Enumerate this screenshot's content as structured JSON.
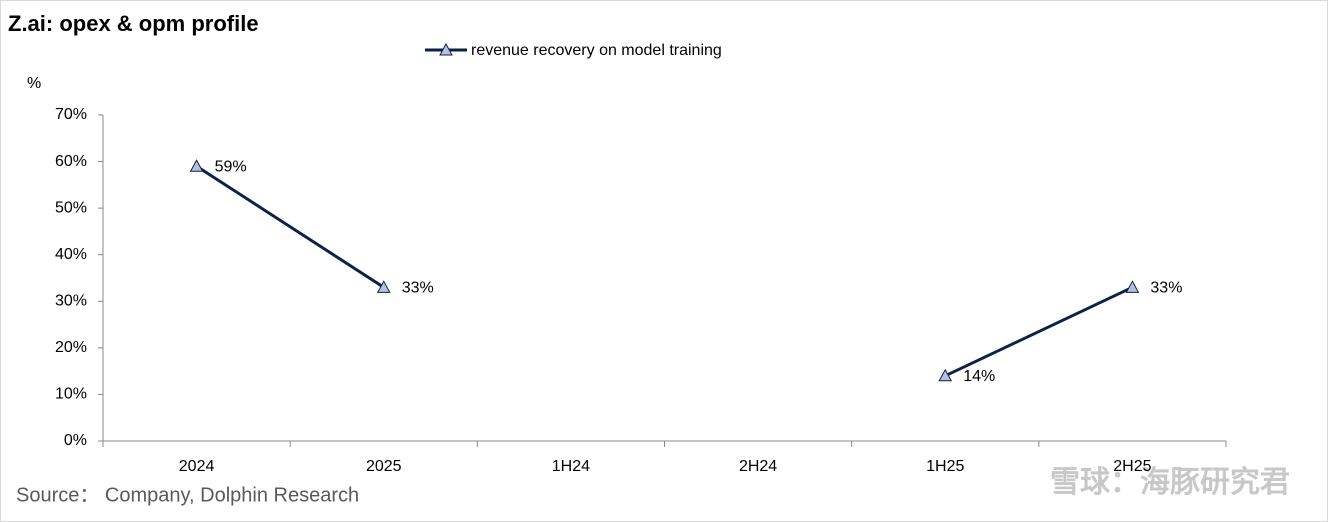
{
  "chart_data": {
    "type": "line",
    "title": "Z.ai: opex & opm profile",
    "y_label": "%",
    "categories": [
      "2024",
      "2025",
      "1H24",
      "2H24",
      "1H25",
      "2H25"
    ],
    "series": [
      {
        "name": "revenue recovery on model training",
        "color": "#0d2147",
        "values": [
          59,
          33,
          null,
          null,
          14,
          33
        ],
        "value_labels": [
          "59%",
          "33%",
          null,
          null,
          "14%",
          "33%"
        ]
      }
    ],
    "ylim": [
      0,
      70
    ],
    "yticks": [
      {
        "value": 0,
        "label": "0%"
      },
      {
        "value": 10,
        "label": "10%"
      },
      {
        "value": 20,
        "label": "20%"
      },
      {
        "value": 30,
        "label": "30%"
      },
      {
        "value": 40,
        "label": "40%"
      },
      {
        "value": 50,
        "label": "50%"
      },
      {
        "value": 60,
        "label": "60%"
      },
      {
        "value": 70,
        "label": "70%"
      }
    ],
    "grid": false,
    "legend": "top",
    "source": "Source：  Company, Dolphin Research",
    "watermark": "雪球：海豚研究君"
  }
}
